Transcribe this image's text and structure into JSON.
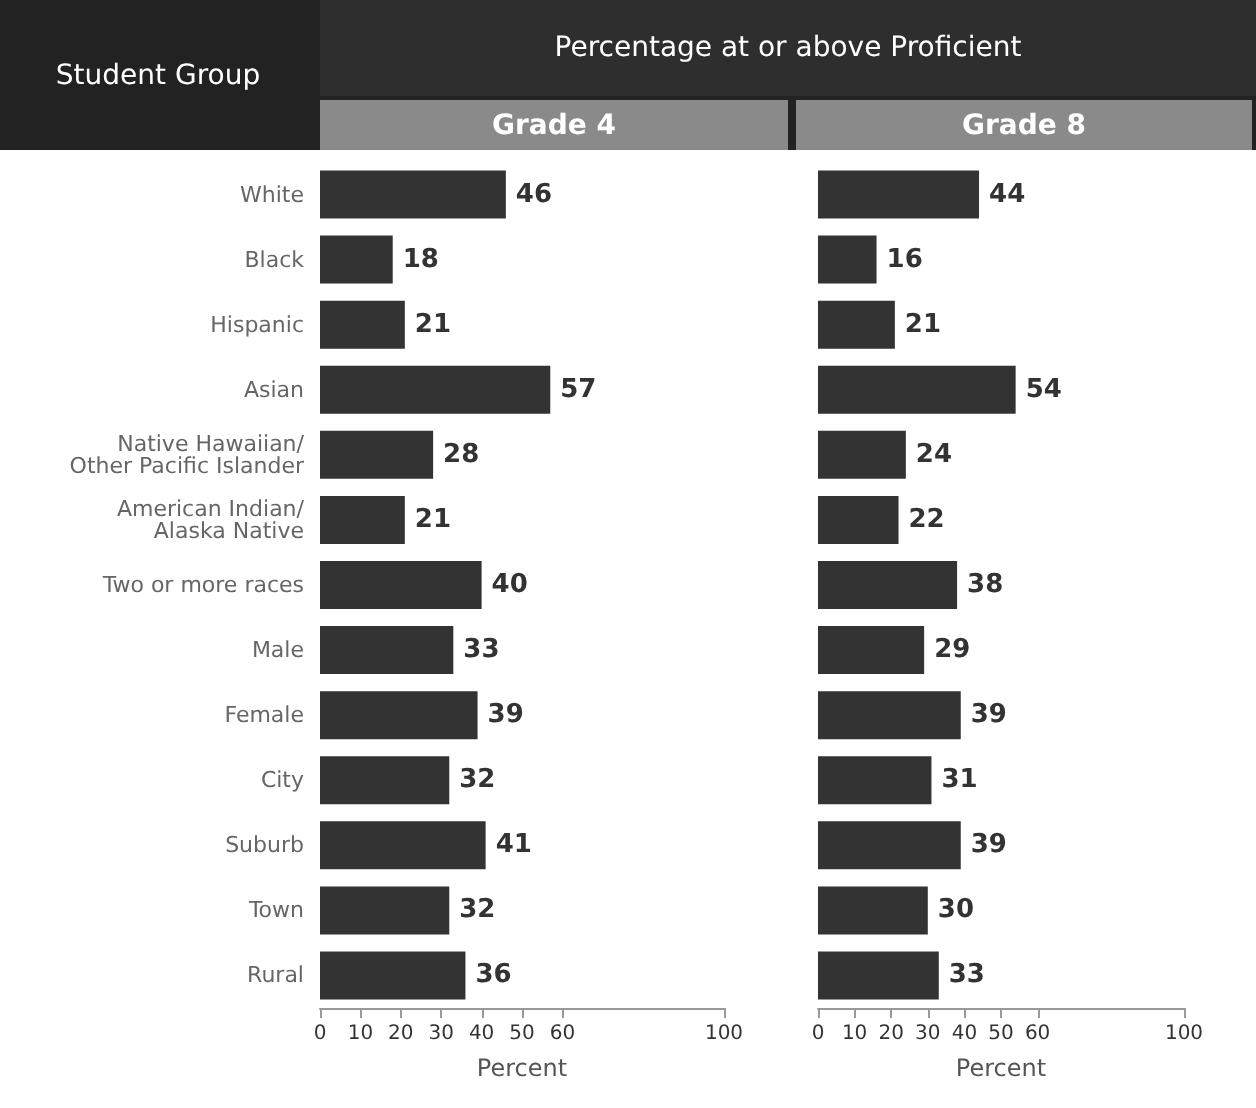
{
  "chart_data": [
    {
      "type": "bar",
      "orientation": "horizontal",
      "title": "Grade 4",
      "subtitle": "Percentage at or above Proficient",
      "ylabel": "Student Group",
      "xlabel": "Percent",
      "categories": [
        "White",
        "Black",
        "Hispanic",
        "Asian",
        "Native Hawaiian/\nOther Pacific Islander",
        "American Indian/\nAlaska Native",
        "Two or more races",
        "Male",
        "Female",
        "City",
        "Suburb",
        "Town",
        "Rural"
      ],
      "values": [
        46,
        18,
        21,
        57,
        28,
        21,
        40,
        33,
        39,
        32,
        41,
        32,
        36
      ],
      "color": "#333333",
      "data_labels": true,
      "xlim": [
        0,
        100
      ],
      "xticks": [
        0,
        10,
        20,
        30,
        40,
        50,
        60,
        100
      ],
      "grid": false
    },
    {
      "type": "bar",
      "orientation": "horizontal",
      "title": "Grade 8",
      "xlabel": "Percent",
      "categories": [
        null,
        null,
        null,
        null,
        null,
        null,
        null,
        null,
        null,
        null,
        null,
        null,
        null
      ],
      "values": [
        44,
        16,
        21,
        54,
        24,
        22,
        38,
        29,
        39,
        31,
        39,
        30,
        33
      ],
      "color": "#333333",
      "data_labels": true,
      "xlim": [
        0,
        100
      ],
      "xticks": [
        0,
        10,
        20,
        30,
        40,
        50,
        60,
        100
      ],
      "grid": false
    }
  ]
}
